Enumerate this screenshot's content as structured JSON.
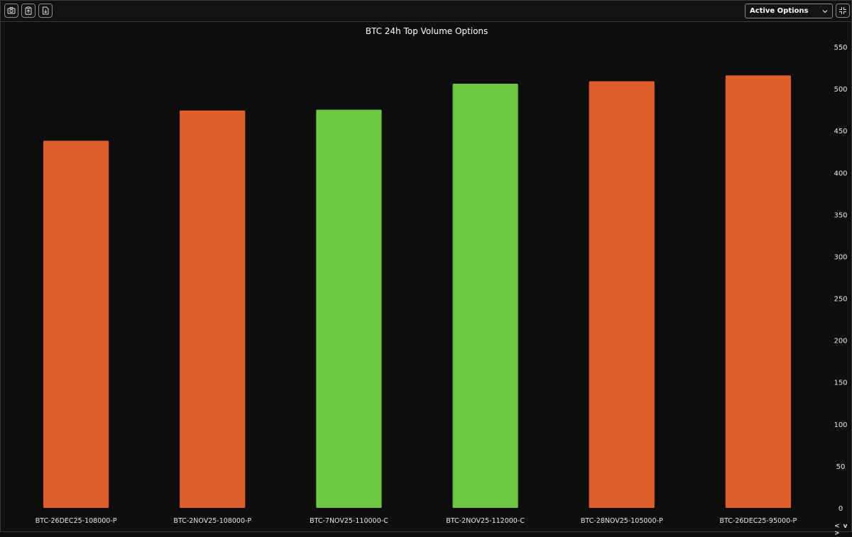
{
  "toolbar": {
    "buttons": [
      {
        "name": "screenshot-button",
        "icon": "camera-icon"
      },
      {
        "name": "copy-button",
        "icon": "clipboard-icon"
      },
      {
        "name": "download-button",
        "icon": "file-download-icon"
      }
    ],
    "dropdown": {
      "selected": "Active Options"
    },
    "collapse_icon": "collapse-icon"
  },
  "nav_arrows": "< v >",
  "colors": {
    "background": "#0e0e0e",
    "put": "#dd5e2b",
    "call": "#6cc640"
  },
  "chart_data": {
    "type": "bar",
    "title": "BTC 24h Top Volume Options",
    "categories": [
      "BTC-26DEC25-108000-P",
      "BTC-2NOV25-108000-P",
      "BTC-7NOV25-110000-C",
      "BTC-2NOV25-112000-C",
      "BTC-28NOV25-105000-P",
      "BTC-26DEC25-95000-P"
    ],
    "values": [
      438,
      474,
      475,
      506,
      509,
      516
    ],
    "bar_types": [
      "put",
      "put",
      "call",
      "call",
      "put",
      "put"
    ],
    "ylim": [
      0,
      550
    ],
    "yticks": [
      0,
      50,
      100,
      150,
      200,
      250,
      300,
      350,
      400,
      450,
      500,
      550
    ],
    "y_axis_position": "right",
    "grid": false
  }
}
